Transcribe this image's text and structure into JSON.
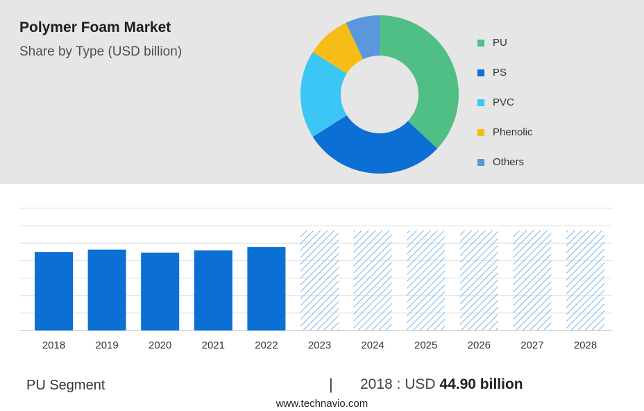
{
  "header": {
    "title": "Polymer Foam Market",
    "subtitle": "Share by Type (USD billion)"
  },
  "chart_data": [
    {
      "type": "pie",
      "variant": "donut",
      "categories": [
        "PU",
        "PS",
        "PVC",
        "Phenolic",
        "Others"
      ],
      "values": [
        37,
        29,
        18,
        9,
        7
      ],
      "colors": [
        "#4fbf86",
        "#0b6fd4",
        "#3cc6f6",
        "#f6bd16",
        "#5b97dc"
      ],
      "legend_position": "right"
    },
    {
      "type": "bar",
      "categories": [
        "2018",
        "2019",
        "2020",
        "2021",
        "2022",
        "2023",
        "2024",
        "2025",
        "2026",
        "2027",
        "2028"
      ],
      "values": [
        44.9,
        46.3,
        44.6,
        45.9,
        47.8,
        57.3,
        57.3,
        57.3,
        57.3,
        57.3,
        57.3
      ],
      "forecast_from": "2023",
      "forecast_style": "hatched",
      "ylim": [
        0,
        70
      ],
      "grid": true,
      "colors": {
        "actual": "#0b6fd4",
        "forecast": "#7ab3e5"
      }
    }
  ],
  "footer": {
    "segment_label": "PU Segment",
    "divider": "|",
    "year_label": "2018 : USD ",
    "value_label": "44.90 billion",
    "source": "www.technavio.com"
  }
}
